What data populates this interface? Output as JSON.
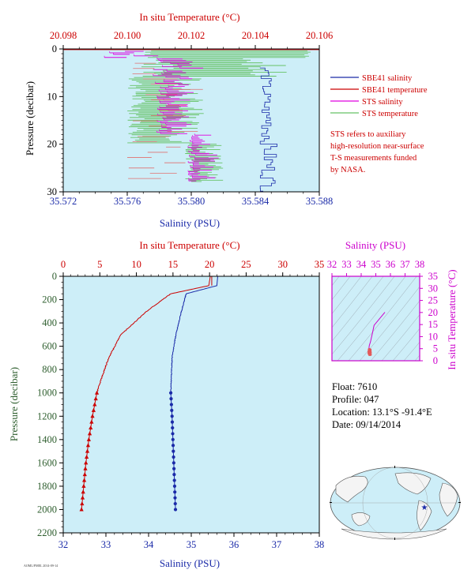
{
  "colors": {
    "plot_bg": "#cdeef8",
    "salinity": "#1a2aa8",
    "temperature": "#cc0000",
    "sts_salinity": "#e000e0",
    "sts_temperature": "#66c266",
    "pressure_axis": "#2e5e2e",
    "ts_axis": "#cc00cc"
  },
  "info": {
    "float": "Float: 7610",
    "profile": "Profile: 047",
    "location": "Location: 13.1°S -91.4°E",
    "date": "Date: 09/14/2014",
    "footer": "AOML/PMEL 2014-09-14"
  },
  "chart_data": [
    {
      "type": "line",
      "id": "near-surface",
      "top_axis_label": "In situ Temperature (°C)",
      "top_ticks": [
        "20.098",
        "20.100",
        "20.102",
        "20.104",
        "20.106"
      ],
      "top_range": [
        20.098,
        20.106
      ],
      "bottom_axis_label": "Salinity (PSU)",
      "bottom_ticks": [
        "35.572",
        "35.576",
        "35.580",
        "35.584",
        "35.588"
      ],
      "bottom_range": [
        35.572,
        35.588
      ],
      "ylabel": "Pressure (decibar)",
      "y_ticks": [
        "0",
        "10",
        "20",
        "30"
      ],
      "ylim": [
        0,
        30
      ],
      "legend": [
        "SBE41 salinity",
        "SBE41 temperature",
        "STS salinity",
        "STS temperature"
      ],
      "note": [
        "STS refers to auxiliary",
        "high-resolution near-surface",
        "T-S measurements funded",
        "by NASA."
      ],
      "series": [
        {
          "name": "SBE41 salinity",
          "axis": "salinity",
          "pressure": [
            4,
            30
          ],
          "values": [
            35.5843,
            35.5856
          ]
        },
        {
          "name": "SBE41 temperature",
          "axis": "temperature",
          "pressure": [
            0,
            0.5
          ],
          "values": [
            20.098,
            20.106
          ]
        },
        {
          "name": "STS salinity",
          "axis": "salinity",
          "pressure": [
            0,
            28
          ],
          "values": [
            35.575,
            35.582
          ]
        },
        {
          "name": "STS temperature",
          "axis": "temperature",
          "pressure": [
            0,
            28
          ],
          "values": [
            20.1,
            20.104
          ]
        }
      ]
    },
    {
      "type": "line",
      "id": "full-profile",
      "top_axis_label": "In situ Temperature (°C)",
      "top_ticks": [
        "0",
        "5",
        "10",
        "15",
        "20",
        "25",
        "30",
        "35"
      ],
      "top_range": [
        0,
        35
      ],
      "bottom_axis_label": "Salinity (PSU)",
      "bottom_ticks": [
        "32",
        "33",
        "34",
        "35",
        "36",
        "37",
        "38"
      ],
      "bottom_range": [
        32,
        38
      ],
      "ylabel": "Pressure (decibar)",
      "y_ticks": [
        "0",
        "200",
        "400",
        "600",
        "800",
        "1000",
        "1200",
        "1400",
        "1600",
        "1800",
        "2000",
        "2200"
      ],
      "ylim": [
        0,
        2200
      ],
      "series": [
        {
          "name": "Salinity",
          "axis": "salinity",
          "pressure": [
            0,
            80,
            150,
            300,
            500,
            700,
            900,
            1000,
            1100,
            1200,
            1300,
            1400,
            1500,
            1600,
            1700,
            1800,
            1900,
            2000
          ],
          "values": [
            35.62,
            35.6,
            34.88,
            34.77,
            34.64,
            34.55,
            34.53,
            34.52,
            34.535,
            34.55,
            34.56,
            34.57,
            34.58,
            34.59,
            34.6,
            34.61,
            34.62,
            34.63
          ]
        },
        {
          "name": "Temperature",
          "axis": "temperature",
          "pressure": [
            0,
            80,
            150,
            300,
            500,
            700,
            900,
            1000,
            1100,
            1200,
            1300,
            1400,
            1500,
            1600,
            1700,
            1800,
            1900,
            2000
          ],
          "values": [
            20.1,
            19.9,
            14.7,
            11.4,
            7.9,
            6.2,
            5.1,
            4.6,
            4.3,
            4.0,
            3.75,
            3.5,
            3.3,
            3.1,
            2.95,
            2.8,
            2.65,
            2.5
          ]
        }
      ]
    },
    {
      "type": "scatter",
      "id": "ts-diagram",
      "top_axis_label": "Salinity (PSU)",
      "x_ticks": [
        "32",
        "33",
        "34",
        "35",
        "36",
        "37",
        "38"
      ],
      "xlim": [
        32,
        38
      ],
      "right_axis_label": "In situ Temperature (°C)",
      "y_ticks": [
        "0",
        "5",
        "10",
        "15",
        "20",
        "25",
        "30",
        "35"
      ],
      "ylim": [
        0,
        35
      ],
      "series": [
        {
          "name": "T-S",
          "x": [
            35.62,
            34.88,
            34.77,
            34.64,
            34.55,
            34.53,
            34.52,
            34.55,
            34.58,
            34.6,
            34.63
          ],
          "y": [
            20.1,
            14.7,
            11.4,
            7.9,
            6.2,
            5.1,
            4.6,
            4.0,
            3.3,
            2.95,
            2.5
          ]
        }
      ]
    }
  ],
  "map": {
    "marker_label": "float-position"
  }
}
